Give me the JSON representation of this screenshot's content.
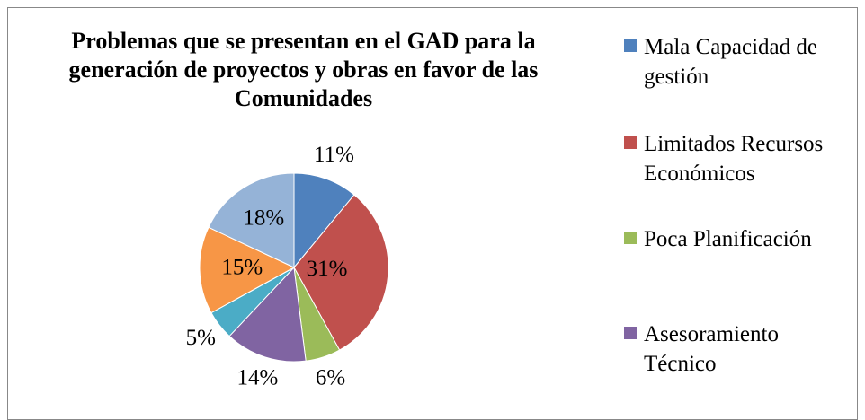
{
  "chart_data": {
    "type": "pie",
    "title": "Problemas que se presentan en el GAD para la generación de proyectos y obras en favor de las Comunidades",
    "categories": [
      "Mala Capacidad de gestión",
      "Limitados Recursos Económicos",
      "Poca Planificación",
      "Asesoramiento Técnico",
      null,
      null,
      null
    ],
    "values": [
      11,
      31,
      6,
      14,
      5,
      15,
      18
    ],
    "value_labels": [
      "11%",
      "31%",
      "6%",
      "14%",
      "5%",
      "15%",
      "18%"
    ],
    "colors": [
      "#4f81bd",
      "#c0504d",
      "#9bbb59",
      "#8064a2",
      "#4bacc6",
      "#f79646",
      "#95b3d7"
    ],
    "legend": "right"
  }
}
